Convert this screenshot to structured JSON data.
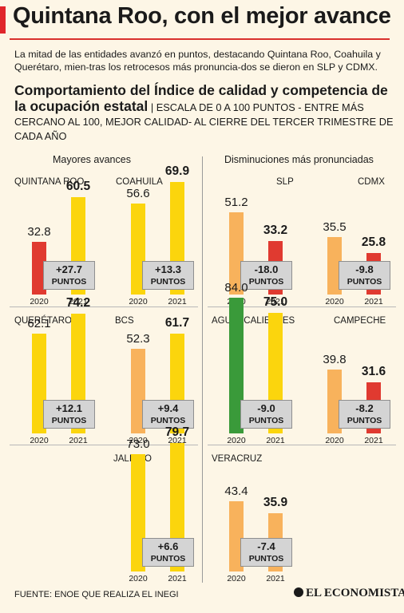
{
  "title": "Quintana Roo, con el mejor avance",
  "intro": "La mitad de las entidades avanzó en puntos, destacando Quintana Roo, Coahuila y Querétaro, mien-tras los retrocesos más pronuncia-dos se dieron en SLP y CDMX.",
  "subtitle_bold": "Comportamiento del Índice de calidad y competencia de la ocupación estatal",
  "subtitle_rest": "| ESCALA DE 0 A 100 PUNTOS - ENTRE MÁS CERCANO AL 100, MEJOR CALIDAD- AL CIERRE DEL TERCER TRIMESTRE DE CADA AÑO",
  "col_left": "Mayores avances",
  "col_right": "Disminuciones más pronunciadas",
  "footer": "FUENTE: ENOE QUE REALIZA EL INEGI",
  "brand": "EL ECONOMISTA",
  "colors": {
    "red": "#e03a30",
    "yellow": "#fbd50d",
    "orange": "#f8b25c",
    "green": "#3a9a3a"
  },
  "chart_data": {
    "type": "bar",
    "title": "Comportamiento del Índice de calidad y competencia de la ocupación estatal",
    "ylim": [
      0,
      100
    ],
    "categories": [
      "2020",
      "2021"
    ],
    "series": [
      {
        "name": "QUINTANA ROO",
        "values": [
          32.8,
          60.5
        ],
        "v2020_label": "32.8",
        "v2021_label": "60.5",
        "change": "+27.7",
        "units": "PUNTOS",
        "colors": [
          "#e03a30",
          "#fbd50d"
        ]
      },
      {
        "name": "COAHUILA",
        "values": [
          56.6,
          69.9
        ],
        "v2020_label": "56.6",
        "v2021_label": "69.9",
        "change": "+13.3",
        "units": "PUNTOS",
        "colors": [
          "#fbd50d",
          "#fbd50d"
        ]
      },
      {
        "name": "SLP",
        "values": [
          51.2,
          33.2
        ],
        "v2020_label": "51.2",
        "v2021_label": "33.2",
        "change": "-18.0",
        "units": "PUNTOS",
        "colors": [
          "#f8b25c",
          "#e03a30"
        ]
      },
      {
        "name": "CDMX",
        "values": [
          35.5,
          25.8
        ],
        "v2020_label": "35.5",
        "v2021_label": "25.8",
        "change": "-9.8",
        "units": "PUNTOS",
        "colors": [
          "#f8b25c",
          "#e03a30"
        ]
      },
      {
        "name": "QUERÉTARO",
        "values": [
          62.1,
          74.2
        ],
        "v2020_label": "62.1",
        "v2021_label": "74.2",
        "change": "+12.1",
        "units": "PUNTOS",
        "colors": [
          "#fbd50d",
          "#fbd50d"
        ]
      },
      {
        "name": "BCS",
        "values": [
          52.3,
          61.7
        ],
        "v2020_label": "52.3",
        "v2021_label": "61.7",
        "change": "+9.4",
        "units": "PUNTOS",
        "colors": [
          "#f8b25c",
          "#fbd50d"
        ]
      },
      {
        "name": "AGUASCALIENTES",
        "values": [
          84.0,
          75.0
        ],
        "v2020_label": "84.0",
        "v2021_label": "75.0",
        "change": "-9.0",
        "units": "PUNTOS",
        "colors": [
          "#3a9a3a",
          "#fbd50d"
        ]
      },
      {
        "name": "CAMPECHE",
        "values": [
          39.8,
          31.6
        ],
        "v2020_label": "39.8",
        "v2021_label": "31.6",
        "change": "-8.2",
        "units": "PUNTOS",
        "colors": [
          "#f8b25c",
          "#e03a30"
        ]
      },
      {
        "name": "JALISCO",
        "values": [
          73.0,
          79.7
        ],
        "v2020_label": "73.0",
        "v2021_label": "79.7",
        "change": "+6.6",
        "units": "PUNTOS",
        "colors": [
          "#fbd50d",
          "#fbd50d"
        ]
      },
      {
        "name": "VERACRUZ",
        "values": [
          43.4,
          35.9
        ],
        "v2020_label": "43.4",
        "v2021_label": "35.9",
        "change": "-7.4",
        "units": "PUNTOS",
        "colors": [
          "#f8b25c",
          "#f8b25c"
        ]
      }
    ]
  }
}
